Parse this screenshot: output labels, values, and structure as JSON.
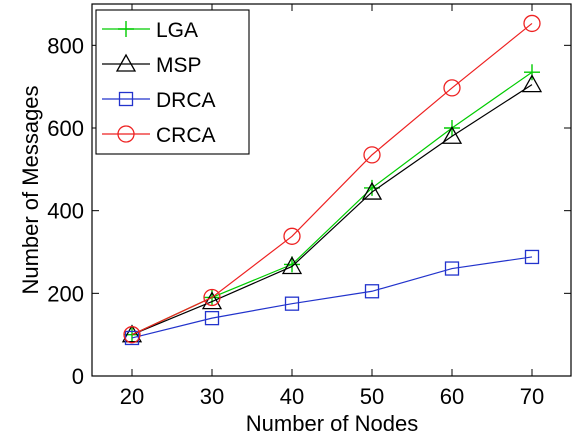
{
  "chart_data": {
    "type": "line",
    "title": "",
    "xlabel": "Number of Nodes",
    "ylabel": "Number of Messages",
    "x": [
      20,
      30,
      40,
      50,
      60,
      70
    ],
    "xlim": [
      15,
      75
    ],
    "ylim": [
      0,
      900
    ],
    "xticks": [
      20,
      30,
      40,
      50,
      60,
      70
    ],
    "yticks": [
      0,
      200,
      400,
      600,
      800
    ],
    "grid": false,
    "legend_position": "top-left",
    "series": [
      {
        "name": "LGA",
        "color": "#00cc00",
        "marker": "plus",
        "values": [
          100,
          190,
          270,
          455,
          600,
          735
        ]
      },
      {
        "name": "MSP",
        "color": "#000000",
        "marker": "triangle",
        "values": [
          100,
          180,
          265,
          445,
          580,
          705
        ]
      },
      {
        "name": "DRCA",
        "color": "#2233cc",
        "marker": "square",
        "values": [
          92,
          140,
          175,
          205,
          260,
          288
        ]
      },
      {
        "name": "CRCA",
        "color": "#ee2222",
        "marker": "circle",
        "values": [
          100,
          190,
          338,
          535,
          697,
          853
        ]
      }
    ]
  }
}
